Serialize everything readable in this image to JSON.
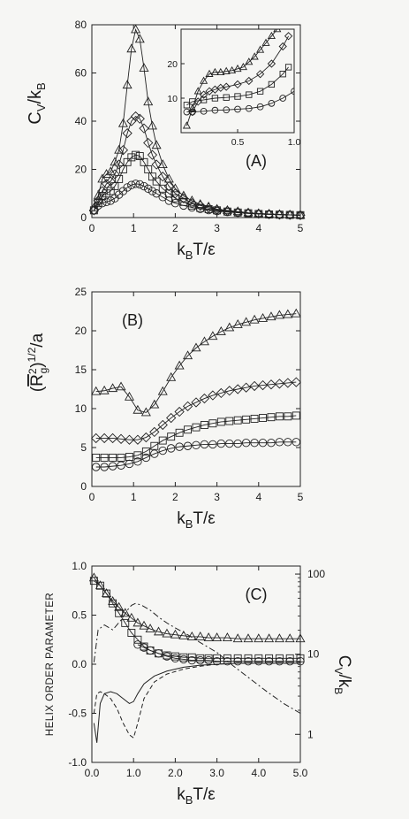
{
  "chart_data": [
    {
      "panel": "A",
      "type": "line",
      "panel_label": "(A)",
      "xlabel": "k_BT/ε",
      "ylabel": "C_V/k_B",
      "xlim": [
        0,
        5
      ],
      "ylim": [
        0,
        80
      ],
      "xticks": [
        0,
        1,
        2,
        3,
        4,
        5
      ],
      "yticks": [
        0,
        20,
        40,
        60,
        80
      ],
      "series": [
        {
          "marker": "triangle",
          "x": [
            0.05,
            0.15,
            0.25,
            0.35,
            0.45,
            0.55,
            0.65,
            0.75,
            0.85,
            0.95,
            1.05,
            1.15,
            1.25,
            1.35,
            1.45,
            1.55,
            1.7,
            1.85,
            2.0,
            2.2,
            2.4,
            2.6,
            2.8,
            3.0,
            3.25,
            3.5,
            3.75,
            4.0,
            4.25,
            4.5,
            4.75,
            5.0
          ],
          "values": [
            4,
            9,
            16,
            18,
            19,
            23,
            28,
            39,
            55,
            70,
            78,
            74,
            62,
            48,
            38,
            30,
            22,
            16,
            12,
            9,
            7,
            5.5,
            4.5,
            3.5,
            3,
            2.5,
            2,
            1.7,
            1.5,
            1.3,
            1.1,
            1
          ]
        },
        {
          "marker": "diamond",
          "x": [
            0.05,
            0.15,
            0.25,
            0.35,
            0.45,
            0.55,
            0.65,
            0.75,
            0.85,
            0.95,
            1.05,
            1.15,
            1.25,
            1.35,
            1.45,
            1.55,
            1.7,
            1.85,
            2.0,
            2.2,
            2.4,
            2.6,
            2.8,
            3.0,
            3.25,
            3.5,
            3.75,
            4.0,
            4.25,
            4.5,
            4.75,
            5.0
          ],
          "values": [
            3,
            7,
            11,
            14,
            15,
            18,
            22,
            28,
            35,
            40,
            42,
            41,
            37,
            31,
            26,
            22,
            17,
            13,
            10,
            8,
            6,
            5,
            4,
            3.3,
            2.8,
            2.3,
            1.9,
            1.6,
            1.4,
            1.2,
            1.1,
            1
          ]
        },
        {
          "marker": "square",
          "x": [
            0.05,
            0.15,
            0.25,
            0.35,
            0.45,
            0.55,
            0.65,
            0.75,
            0.85,
            0.95,
            1.05,
            1.15,
            1.25,
            1.35,
            1.45,
            1.55,
            1.7,
            1.85,
            2.0,
            2.2,
            2.4,
            2.6,
            2.8,
            3.0,
            3.25,
            3.5,
            3.75,
            4.0,
            4.25,
            4.5,
            4.75,
            5.0
          ],
          "values": [
            3,
            6,
            9,
            10,
            11,
            13,
            16,
            20,
            23,
            25,
            26,
            25.5,
            23,
            20,
            17,
            15,
            12,
            10,
            8,
            6.5,
            5,
            4,
            3.5,
            3,
            2.5,
            2.1,
            1.8,
            1.5,
            1.3,
            1.2,
            1.1,
            1
          ]
        },
        {
          "marker": "circle",
          "x": [
            0.05,
            0.15,
            0.25,
            0.35,
            0.45,
            0.55,
            0.65,
            0.75,
            0.85,
            0.95,
            1.05,
            1.15,
            1.25,
            1.35,
            1.45,
            1.55,
            1.7,
            1.85,
            2.0,
            2.2,
            2.4,
            2.6,
            2.8,
            3.0,
            3.25,
            3.5,
            3.75,
            4.0,
            4.25,
            4.5,
            4.75,
            5.0
          ],
          "values": [
            3,
            5,
            6,
            6.5,
            7,
            8,
            9.5,
            11,
            12.5,
            13.5,
            14,
            13.8,
            13,
            12,
            11,
            10,
            8.5,
            7,
            6,
            5,
            4.2,
            3.6,
            3.1,
            2.7,
            2.3,
            2,
            1.7,
            1.5,
            1.3,
            1.2,
            1.1,
            1
          ]
        }
      ],
      "inset": {
        "xlim": [
          0,
          1
        ],
        "ylim": [
          0,
          30
        ],
        "xticks": [
          0.5,
          1.0
        ],
        "xtick_labels": [
          "0.5",
          "1.0"
        ],
        "yticks": [
          10,
          20
        ],
        "series": [
          {
            "marker": "triangle",
            "x": [
              0.05,
              0.1,
              0.15,
              0.2,
              0.25,
              0.3,
              0.35,
              0.4,
              0.45,
              0.5,
              0.55,
              0.6,
              0.65,
              0.7,
              0.75,
              0.8,
              0.85
            ],
            "values": [
              2,
              7,
              12,
              15,
              17,
              17.5,
              17.5,
              17.8,
              18,
              18.5,
              19,
              20.5,
              22,
              24,
              26,
              28,
              30
            ]
          },
          {
            "marker": "diamond",
            "x": [
              0.1,
              0.15,
              0.2,
              0.25,
              0.3,
              0.35,
              0.4,
              0.5,
              0.6,
              0.7,
              0.8,
              0.9,
              0.95
            ],
            "values": [
              6,
              9,
              11,
              12,
              12.5,
              13,
              13.3,
              14,
              15,
              17,
              20,
              25,
              28
            ]
          },
          {
            "marker": "square",
            "x": [
              0.05,
              0.1,
              0.2,
              0.3,
              0.4,
              0.5,
              0.6,
              0.7,
              0.8,
              0.9,
              0.95
            ],
            "values": [
              8,
              9,
              9.5,
              10,
              10.2,
              10.5,
              11,
              12,
              14,
              17,
              19
            ]
          },
          {
            "marker": "circle",
            "x": [
              0.05,
              0.1,
              0.2,
              0.3,
              0.4,
              0.5,
              0.6,
              0.7,
              0.8,
              0.9,
              1.0
            ],
            "values": [
              6,
              6,
              6.2,
              6.5,
              6.6,
              6.8,
              7,
              7.5,
              8.5,
              10,
              12
            ]
          }
        ]
      }
    },
    {
      "panel": "B",
      "type": "line",
      "panel_label": "(B)",
      "xlabel": "k_BT/ε",
      "ylabel": "(R_g²)^1/2/a",
      "xlim": [
        0,
        5
      ],
      "ylim": [
        0,
        25
      ],
      "xticks": [
        0,
        1,
        2,
        3,
        4,
        5
      ],
      "yticks": [
        0,
        5,
        10,
        15,
        20,
        25
      ],
      "series": [
        {
          "marker": "triangle",
          "x": [
            0.1,
            0.3,
            0.5,
            0.7,
            0.9,
            1.1,
            1.3,
            1.5,
            1.7,
            1.9,
            2.1,
            2.3,
            2.5,
            2.7,
            2.9,
            3.1,
            3.3,
            3.5,
            3.7,
            3.9,
            4.1,
            4.3,
            4.5,
            4.7,
            4.9
          ],
          "values": [
            12.2,
            12.3,
            12.6,
            12.8,
            11.5,
            9.8,
            9.5,
            10.5,
            12.2,
            14.0,
            15.5,
            16.8,
            17.8,
            18.6,
            19.3,
            19.9,
            20.4,
            20.8,
            21.1,
            21.4,
            21.6,
            21.8,
            22.0,
            22.1,
            22.2
          ]
        },
        {
          "marker": "diamond",
          "x": [
            0.1,
            0.3,
            0.5,
            0.7,
            0.9,
            1.1,
            1.3,
            1.5,
            1.7,
            1.9,
            2.1,
            2.3,
            2.5,
            2.7,
            2.9,
            3.1,
            3.3,
            3.5,
            3.7,
            3.9,
            4.1,
            4.3,
            4.5,
            4.7,
            4.9
          ],
          "values": [
            6.2,
            6.2,
            6.2,
            6.1,
            6.0,
            6.0,
            6.3,
            7.0,
            7.9,
            8.8,
            9.6,
            10.3,
            10.8,
            11.3,
            11.7,
            12.0,
            12.3,
            12.5,
            12.7,
            12.9,
            13.0,
            13.1,
            13.2,
            13.3,
            13.4
          ]
        },
        {
          "marker": "square",
          "x": [
            0.1,
            0.3,
            0.5,
            0.7,
            0.9,
            1.1,
            1.3,
            1.5,
            1.7,
            1.9,
            2.1,
            2.3,
            2.5,
            2.7,
            2.9,
            3.1,
            3.3,
            3.5,
            3.7,
            3.9,
            4.1,
            4.3,
            4.5,
            4.7,
            4.9
          ],
          "values": [
            3.7,
            3.7,
            3.7,
            3.7,
            3.8,
            4.0,
            4.5,
            5.2,
            5.9,
            6.4,
            6.9,
            7.3,
            7.6,
            7.9,
            8.1,
            8.3,
            8.4,
            8.5,
            8.6,
            8.7,
            8.8,
            8.9,
            9.0,
            9.0,
            9.1
          ]
        },
        {
          "marker": "circle",
          "x": [
            0.1,
            0.3,
            0.5,
            0.7,
            0.9,
            1.1,
            1.3,
            1.5,
            1.7,
            1.9,
            2.1,
            2.3,
            2.5,
            2.7,
            2.9,
            3.1,
            3.3,
            3.5,
            3.7,
            3.9,
            4.1,
            4.3,
            4.5,
            4.7,
            4.9
          ],
          "values": [
            2.5,
            2.5,
            2.6,
            2.7,
            2.9,
            3.2,
            3.7,
            4.2,
            4.6,
            4.9,
            5.1,
            5.2,
            5.3,
            5.4,
            5.4,
            5.5,
            5.5,
            5.5,
            5.6,
            5.6,
            5.6,
            5.6,
            5.7,
            5.7,
            5.7
          ]
        }
      ]
    },
    {
      "panel": "C",
      "type": "line",
      "panel_label": "(C)",
      "xlabel": "k_BT/ε",
      "ylabel": "HELIX ORDER PARAMETER",
      "ylabel_right": "C_V/k_B",
      "xlim": [
        0,
        5
      ],
      "ylim": [
        -1.0,
        1.0
      ],
      "xticks": [
        0,
        1,
        2,
        3,
        4,
        5
      ],
      "xtick_labels": [
        "0.0",
        "1.0",
        "2.0",
        "3.0",
        "4.0",
        "5.0"
      ],
      "yticks": [
        -1.0,
        -0.5,
        0.0,
        0.5,
        1.0
      ],
      "ytick_labels": [
        "-1.0",
        "-0.5",
        "0.0",
        "0.5",
        "1.0"
      ],
      "right_axis": {
        "scale": "log",
        "ticks": [
          1,
          10,
          100
        ],
        "tick_labels": [
          "1",
          "10",
          "100"
        ]
      },
      "series": [
        {
          "marker": "square",
          "x": [
            0.05,
            0.2,
            0.35,
            0.5,
            0.65,
            0.8,
            0.95,
            1.1,
            1.25,
            1.4,
            1.6,
            1.8,
            2.0,
            2.2,
            2.4,
            2.6,
            2.8,
            3.0,
            3.25,
            3.5,
            3.75,
            4.0,
            4.25,
            4.5,
            4.75,
            5.0
          ],
          "values": [
            0.85,
            0.8,
            0.72,
            0.62,
            0.52,
            0.42,
            0.32,
            0.25,
            0.18,
            0.14,
            0.11,
            0.09,
            0.08,
            0.07,
            0.07,
            0.06,
            0.06,
            0.06,
            0.06,
            0.06,
            0.06,
            0.06,
            0.06,
            0.06,
            0.06,
            0.06
          ]
        },
        {
          "marker": "triangle",
          "x": [
            0.05,
            0.2,
            0.35,
            0.5,
            0.65,
            0.8,
            0.95,
            1.1,
            1.25,
            1.4,
            1.6,
            1.8,
            2.0,
            2.2,
            2.4,
            2.6,
            2.8,
            3.0,
            3.25,
            3.5,
            3.75,
            4.0,
            4.25,
            4.5,
            4.75,
            5.0
          ],
          "values": [
            0.88,
            0.8,
            0.72,
            0.64,
            0.58,
            0.52,
            0.47,
            0.42,
            0.39,
            0.36,
            0.33,
            0.31,
            0.3,
            0.29,
            0.28,
            0.28,
            0.27,
            0.27,
            0.27,
            0.26,
            0.26,
            0.26,
            0.26,
            0.26,
            0.26,
            0.26
          ]
        },
        {
          "marker": "circle",
          "x": [
            1.1,
            1.25,
            1.4,
            1.6,
            1.8,
            2.0,
            2.2,
            2.4,
            2.6,
            2.8,
            3.0,
            3.25,
            3.5,
            3.75,
            4.0,
            4.25,
            4.5,
            4.75,
            5.0
          ],
          "values": [
            0.2,
            0.17,
            0.14,
            0.11,
            0.08,
            0.06,
            0.05,
            0.04,
            0.04,
            0.04,
            0.03,
            0.03,
            0.03,
            0.03,
            0.03,
            0.03,
            0.03,
            0.03,
            0.03
          ]
        },
        {
          "style": "dash-dot",
          "x": [
            0.05,
            0.15,
            0.3,
            0.5,
            0.7,
            0.85,
            0.95,
            1.05,
            1.2,
            1.4,
            1.6,
            1.8,
            2.0,
            2.3,
            2.6,
            3.0,
            3.4,
            3.8,
            4.2,
            4.6,
            5.0
          ],
          "values": [
            0.02,
            0.35,
            0.4,
            0.35,
            0.45,
            0.55,
            0.6,
            0.62,
            0.6,
            0.55,
            0.48,
            0.42,
            0.37,
            0.3,
            0.22,
            0.12,
            -0.02,
            -0.15,
            -0.28,
            -0.4,
            -0.5
          ]
        },
        {
          "style": "solid",
          "x": [
            0.05,
            0.12,
            0.2,
            0.3,
            0.45,
            0.6,
            0.75,
            0.9,
            1.0,
            1.1,
            1.25,
            1.5,
            1.8,
            2.2,
            2.6,
            3.0,
            3.5,
            4.0,
            4.5,
            5.0
          ],
          "values": [
            -0.6,
            -0.8,
            -0.4,
            -0.3,
            -0.28,
            -0.3,
            -0.35,
            -0.4,
            -0.38,
            -0.3,
            -0.2,
            -0.12,
            -0.07,
            -0.03,
            -0.01,
            0.0,
            0.01,
            0.01,
            0.01,
            0.01
          ]
        },
        {
          "style": "dash",
          "x": [
            0.05,
            0.12,
            0.2,
            0.3,
            0.45,
            0.6,
            0.75,
            0.9,
            1.0,
            1.1,
            1.25,
            1.5,
            1.8,
            2.2,
            2.6,
            3.0,
            3.5,
            4.0,
            4.5,
            5.0
          ],
          "values": [
            -0.5,
            -0.3,
            -0.28,
            -0.3,
            -0.35,
            -0.45,
            -0.6,
            -0.72,
            -0.75,
            -0.6,
            -0.35,
            -0.18,
            -0.1,
            -0.05,
            -0.02,
            0.0,
            0.01,
            0.01,
            0.01,
            0.01
          ]
        }
      ]
    }
  ]
}
